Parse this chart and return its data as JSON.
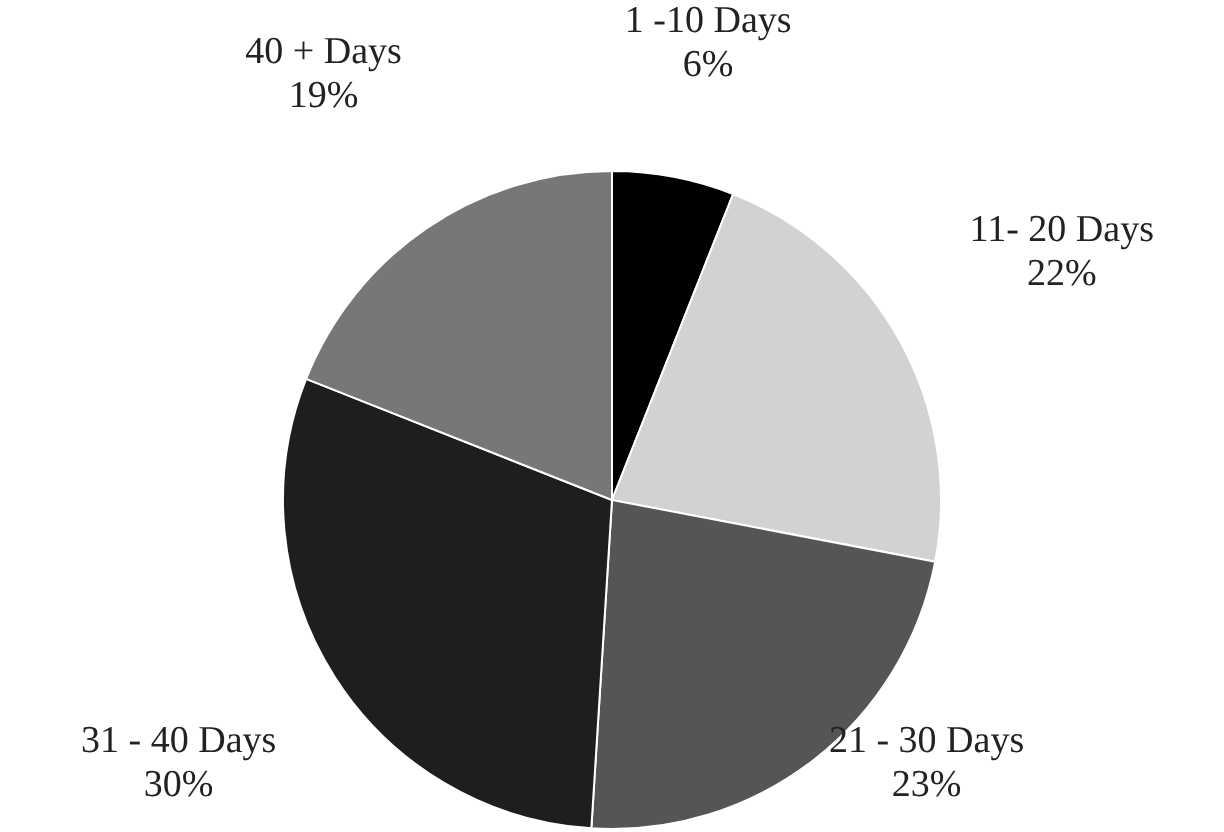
{
  "chart_data": {
    "type": "pie",
    "categories": [
      "1 -10 Days",
      "11- 20 Days",
      "21 - 30 Days",
      "31 - 40 Days",
      "40 + Days"
    ],
    "values": [
      6,
      22,
      23,
      30,
      19
    ],
    "colors": [
      "#000000",
      "#d2d2d2",
      "#555555",
      "#1e1e1e",
      "#777777"
    ],
    "value_labels": [
      "6%",
      "22%",
      "23%",
      "30%",
      "19%"
    ],
    "legend": false
  }
}
